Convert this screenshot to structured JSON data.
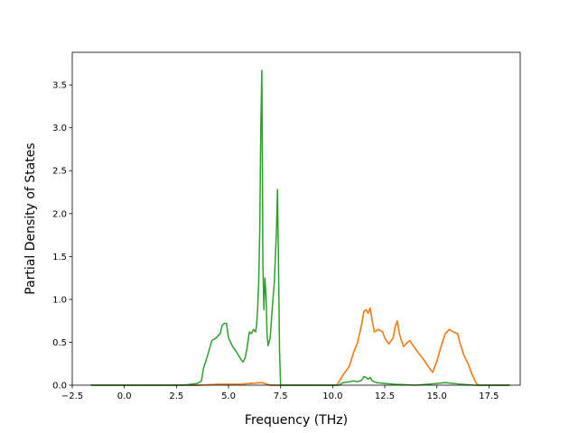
{
  "chart_data": {
    "type": "line",
    "xlabel": "Frequency (THz)",
    "ylabel": "Partial Density of States",
    "xlim": [
      -2.5,
      19.0
    ],
    "ylim": [
      0,
      3.88
    ],
    "x_ticks": [
      -2.5,
      0.0,
      2.5,
      5.0,
      7.5,
      10.0,
      12.5,
      15.0,
      17.5
    ],
    "x_tick_labels": [
      "−2.5",
      "0.0",
      "2.5",
      "5.0",
      "7.5",
      "10.0",
      "12.5",
      "15.0",
      "17.5"
    ],
    "y_ticks": [
      0.0,
      0.5,
      1.0,
      1.5,
      2.0,
      2.5,
      3.0,
      3.5
    ],
    "y_tick_labels": [
      "0.0",
      "0.5",
      "1.0",
      "1.5",
      "2.0",
      "2.5",
      "3.0",
      "3.5"
    ],
    "grid": false,
    "legend": "none",
    "series": [
      {
        "color": "#1f77b4",
        "points": [
          [
            -1.6,
            0
          ],
          [
            3.6,
            0.0
          ],
          [
            4.5,
            0.01
          ],
          [
            5.5,
            0.01
          ],
          [
            6.0,
            0.02
          ],
          [
            6.6,
            0.03
          ],
          [
            7.0,
            0.0
          ],
          [
            7.4,
            0.0
          ],
          [
            10.2,
            0.0
          ],
          [
            10.5,
            0.12
          ],
          [
            10.8,
            0.22
          ],
          [
            11.0,
            0.38
          ],
          [
            11.2,
            0.5
          ],
          [
            11.4,
            0.72
          ],
          [
            11.5,
            0.86
          ],
          [
            11.6,
            0.88
          ],
          [
            11.7,
            0.84
          ],
          [
            11.8,
            0.9
          ],
          [
            11.9,
            0.75
          ],
          [
            12.0,
            0.62
          ],
          [
            12.2,
            0.65
          ],
          [
            12.4,
            0.62
          ],
          [
            12.5,
            0.55
          ],
          [
            12.7,
            0.48
          ],
          [
            12.9,
            0.55
          ],
          [
            13.0,
            0.68
          ],
          [
            13.1,
            0.75
          ],
          [
            13.2,
            0.6
          ],
          [
            13.4,
            0.45
          ],
          [
            13.6,
            0.5
          ],
          [
            13.7,
            0.52
          ],
          [
            13.9,
            0.45
          ],
          [
            14.1,
            0.38
          ],
          [
            14.3,
            0.32
          ],
          [
            14.5,
            0.25
          ],
          [
            14.7,
            0.18
          ],
          [
            14.8,
            0.15
          ],
          [
            15.0,
            0.28
          ],
          [
            15.2,
            0.45
          ],
          [
            15.4,
            0.6
          ],
          [
            15.6,
            0.65
          ],
          [
            15.8,
            0.62
          ],
          [
            16.0,
            0.6
          ],
          [
            16.1,
            0.5
          ],
          [
            16.3,
            0.35
          ],
          [
            16.5,
            0.25
          ],
          [
            16.7,
            0.12
          ],
          [
            16.9,
            0.02
          ],
          [
            17.0,
            0.0
          ],
          [
            18.5,
            0.0
          ]
        ]
      },
      {
        "color": "#ff7f0e",
        "points": [
          [
            -1.6,
            0
          ],
          [
            3.6,
            0.0
          ],
          [
            4.5,
            0.01
          ],
          [
            5.5,
            0.01
          ],
          [
            6.0,
            0.02
          ],
          [
            6.6,
            0.03
          ],
          [
            7.0,
            0.0
          ],
          [
            7.4,
            0.0
          ],
          [
            10.2,
            0.0
          ],
          [
            10.5,
            0.12
          ],
          [
            10.8,
            0.22
          ],
          [
            11.0,
            0.38
          ],
          [
            11.2,
            0.5
          ],
          [
            11.4,
            0.72
          ],
          [
            11.5,
            0.86
          ],
          [
            11.6,
            0.88
          ],
          [
            11.7,
            0.84
          ],
          [
            11.8,
            0.9
          ],
          [
            11.9,
            0.75
          ],
          [
            12.0,
            0.62
          ],
          [
            12.2,
            0.65
          ],
          [
            12.4,
            0.62
          ],
          [
            12.5,
            0.55
          ],
          [
            12.7,
            0.48
          ],
          [
            12.9,
            0.55
          ],
          [
            13.0,
            0.68
          ],
          [
            13.1,
            0.75
          ],
          [
            13.2,
            0.6
          ],
          [
            13.4,
            0.45
          ],
          [
            13.6,
            0.5
          ],
          [
            13.7,
            0.52
          ],
          [
            13.9,
            0.45
          ],
          [
            14.1,
            0.38
          ],
          [
            14.3,
            0.32
          ],
          [
            14.5,
            0.25
          ],
          [
            14.7,
            0.18
          ],
          [
            14.8,
            0.15
          ],
          [
            15.0,
            0.28
          ],
          [
            15.2,
            0.45
          ],
          [
            15.4,
            0.6
          ],
          [
            15.6,
            0.65
          ],
          [
            15.8,
            0.62
          ],
          [
            16.0,
            0.6
          ],
          [
            16.1,
            0.5
          ],
          [
            16.3,
            0.35
          ],
          [
            16.5,
            0.25
          ],
          [
            16.7,
            0.12
          ],
          [
            16.9,
            0.02
          ],
          [
            17.0,
            0.0
          ],
          [
            18.5,
            0.0
          ]
        ]
      },
      {
        "color": "#2ca02c",
        "points": [
          [
            -1.6,
            0
          ],
          [
            2.5,
            0.0
          ],
          [
            3.0,
            0.005
          ],
          [
            3.5,
            0.02
          ],
          [
            3.7,
            0.05
          ],
          [
            3.8,
            0.2
          ],
          [
            4.0,
            0.35
          ],
          [
            4.2,
            0.52
          ],
          [
            4.4,
            0.55
          ],
          [
            4.6,
            0.6
          ],
          [
            4.7,
            0.7
          ],
          [
            4.8,
            0.72
          ],
          [
            4.9,
            0.72
          ],
          [
            5.0,
            0.55
          ],
          [
            5.2,
            0.45
          ],
          [
            5.4,
            0.38
          ],
          [
            5.6,
            0.3
          ],
          [
            5.7,
            0.27
          ],
          [
            5.8,
            0.32
          ],
          [
            5.9,
            0.45
          ],
          [
            6.0,
            0.62
          ],
          [
            6.1,
            0.6
          ],
          [
            6.2,
            0.65
          ],
          [
            6.3,
            0.62
          ],
          [
            6.35,
            0.7
          ],
          [
            6.4,
            0.9
          ],
          [
            6.45,
            1.2
          ],
          [
            6.5,
            1.8
          ],
          [
            6.55,
            3.0
          ],
          [
            6.6,
            3.67
          ],
          [
            6.63,
            2.4
          ],
          [
            6.65,
            1.4
          ],
          [
            6.7,
            0.88
          ],
          [
            6.75,
            1.25
          ],
          [
            6.8,
            1.05
          ],
          [
            6.85,
            0.6
          ],
          [
            6.9,
            0.46
          ],
          [
            7.0,
            0.55
          ],
          [
            7.1,
            0.9
          ],
          [
            7.2,
            1.2
          ],
          [
            7.3,
            1.8
          ],
          [
            7.35,
            2.28
          ],
          [
            7.4,
            1.4
          ],
          [
            7.45,
            0.4
          ],
          [
            7.5,
            0.0
          ],
          [
            10.3,
            0.0
          ],
          [
            10.5,
            0.03
          ],
          [
            10.8,
            0.04
          ],
          [
            11.0,
            0.05
          ],
          [
            11.2,
            0.04
          ],
          [
            11.4,
            0.06
          ],
          [
            11.5,
            0.1
          ],
          [
            11.6,
            0.09
          ],
          [
            11.7,
            0.07
          ],
          [
            11.8,
            0.09
          ],
          [
            11.9,
            0.05
          ],
          [
            12.1,
            0.03
          ],
          [
            12.5,
            0.02
          ],
          [
            13.0,
            0.01
          ],
          [
            14.0,
            0.0
          ],
          [
            15.0,
            0.02
          ],
          [
            15.4,
            0.03
          ],
          [
            15.8,
            0.02
          ],
          [
            16.2,
            0.01
          ],
          [
            16.8,
            0.0
          ],
          [
            18.5,
            0.0
          ]
        ]
      }
    ]
  }
}
